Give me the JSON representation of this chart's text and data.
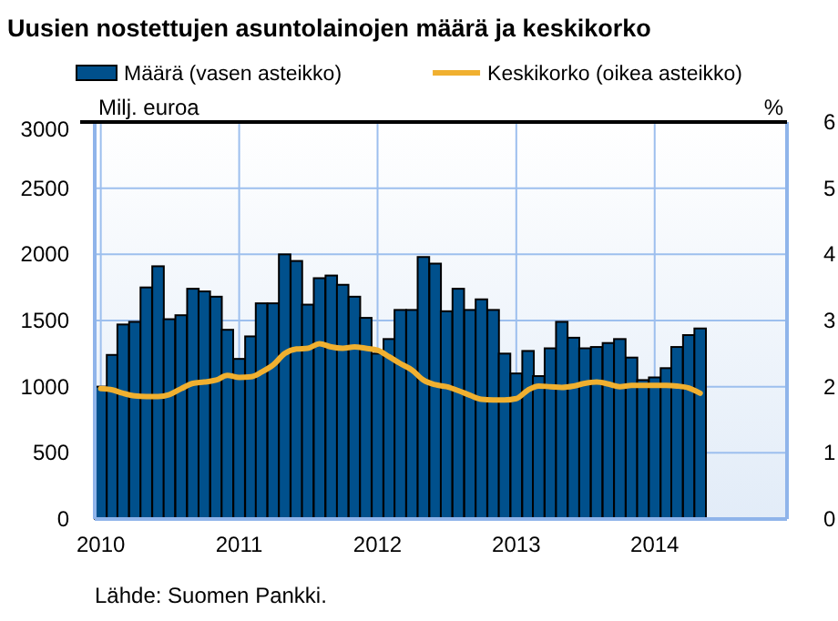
{
  "chart_data": {
    "type": "bar",
    "title": "Uusien nostettujen asuntolainojen määrä ja keskikorko",
    "ylabel": "Milj. euroa",
    "y2label": "%",
    "annotations": [
      "Lähde: Suomen Pankki."
    ],
    "x": [
      "2010-01",
      "2010-02",
      "2010-03",
      "2010-04",
      "2010-05",
      "2010-06",
      "2010-07",
      "2010-08",
      "2010-09",
      "2010-10",
      "2010-11",
      "2010-12",
      "2011-01",
      "2011-02",
      "2011-03",
      "2011-04",
      "2011-05",
      "2011-06",
      "2011-07",
      "2011-08",
      "2011-09",
      "2011-10",
      "2011-11",
      "2011-12",
      "2012-01",
      "2012-02",
      "2012-03",
      "2012-04",
      "2012-05",
      "2012-06",
      "2012-07",
      "2012-08",
      "2012-09",
      "2012-10",
      "2012-11",
      "2012-12",
      "2013-01",
      "2013-02",
      "2013-03",
      "2013-04",
      "2013-05",
      "2013-06",
      "2013-07",
      "2013-08",
      "2013-09",
      "2013-10",
      "2013-11",
      "2013-12",
      "2014-01",
      "2014-02",
      "2014-03",
      "2014-04",
      "2014-05"
    ],
    "series": [
      {
        "name": "Määrä (vasen asteikko)",
        "color": "#00508c",
        "values": [
          1000,
          1240,
          1470,
          1490,
          1750,
          1910,
          1510,
          1540,
          1740,
          1720,
          1680,
          1430,
          1210,
          1380,
          1630,
          1630,
          2000,
          1950,
          1620,
          1820,
          1840,
          1770,
          1680,
          1520,
          1250,
          1360,
          1580,
          1580,
          1980,
          1930,
          1570,
          1740,
          1580,
          1660,
          1580,
          1250,
          1100,
          1270,
          1080,
          1290,
          1490,
          1370,
          1290,
          1300,
          1330,
          1360,
          1220,
          1050,
          1070,
          1140,
          1300,
          1390,
          1440
        ]
      },
      {
        "name": "Keskikorko (oikea asteikko)",
        "type": "line",
        "axis": "y2",
        "color": "#f0b030",
        "values": [
          1.97,
          1.95,
          1.9,
          1.86,
          1.85,
          1.85,
          1.88,
          1.97,
          2.05,
          2.07,
          2.1,
          2.17,
          2.14,
          2.15,
          2.22,
          2.33,
          2.5,
          2.57,
          2.58,
          2.65,
          2.6,
          2.58,
          2.6,
          2.58,
          2.55,
          2.45,
          2.35,
          2.25,
          2.1,
          2.03,
          2.0,
          1.94,
          1.87,
          1.81,
          1.8,
          1.8,
          1.82,
          1.95,
          2.01,
          2.0,
          1.99,
          2.01,
          2.05,
          2.07,
          2.04,
          2.0,
          2.02,
          2.02,
          2.02,
          2.02,
          2.01,
          1.98,
          1.9
        ]
      }
    ],
    "xlim": [
      "2009-12-16",
      "2014-12-16"
    ],
    "xticks": [
      {
        "value": "2010-01",
        "label": "2010"
      },
      {
        "value": "2011-01",
        "label": "2011"
      },
      {
        "value": "2012-01",
        "label": "2012"
      },
      {
        "value": "2013-01",
        "label": "2013"
      },
      {
        "value": "2014-01",
        "label": "2014"
      }
    ],
    "ylim": [
      0,
      3000
    ],
    "yticks": [
      0,
      500,
      1000,
      1500,
      2000,
      2500,
      3000
    ],
    "y2lim": [
      0,
      6
    ],
    "y2ticks": [
      0,
      1,
      2,
      3,
      4,
      5,
      6
    ],
    "grid": true,
    "legend": "top",
    "marker": "none",
    "line_style": "solid"
  }
}
